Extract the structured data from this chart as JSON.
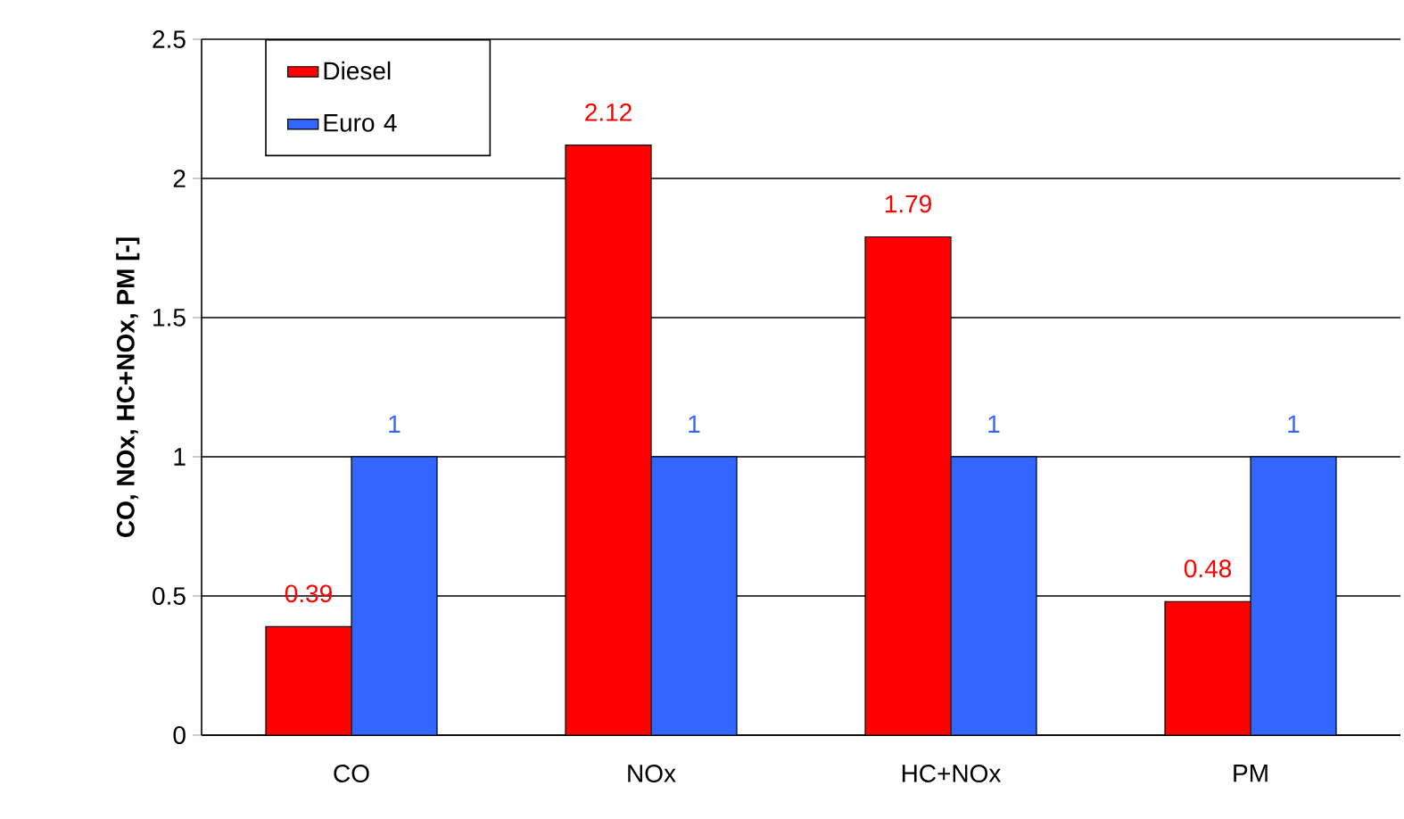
{
  "chart_data": {
    "type": "bar",
    "ylabel": "CO, NOx, HC+NOx, PM [-]",
    "categories": [
      "CO",
      "NOx",
      "HC+NOx",
      "PM"
    ],
    "series": [
      {
        "name": "Diesel",
        "color": "#ff0000",
        "values": [
          0.39,
          2.12,
          1.79,
          0.48
        ]
      },
      {
        "name": "Euro 4",
        "color": "#3366ff",
        "values": [
          1,
          1,
          1,
          1
        ]
      }
    ],
    "ylim": [
      0,
      2.5
    ],
    "yticks": [
      0,
      0.5,
      1,
      1.5,
      2,
      2.5
    ],
    "grid": "y",
    "legend": "top left",
    "data_labels": true
  }
}
